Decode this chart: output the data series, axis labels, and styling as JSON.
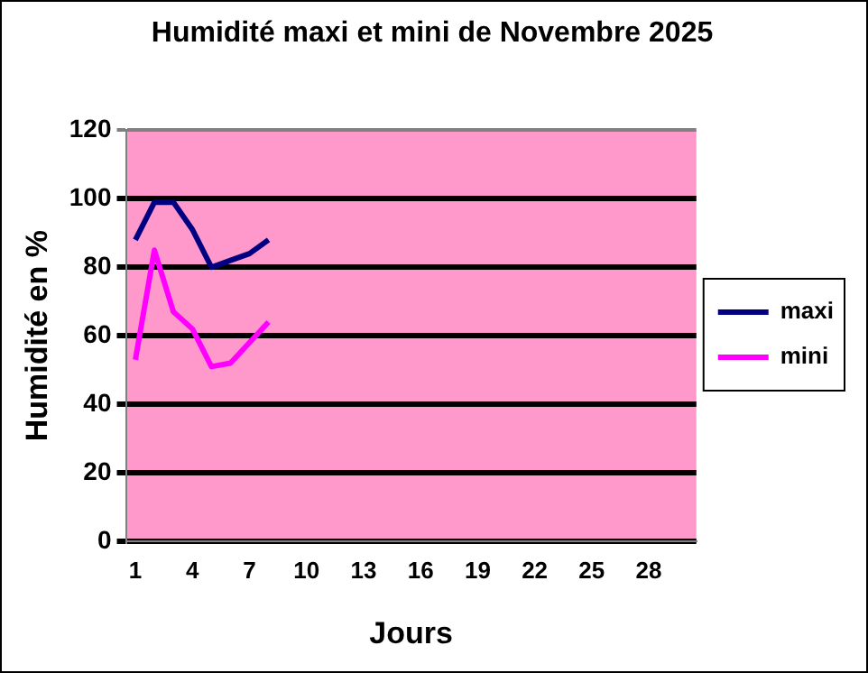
{
  "chart_data": {
    "type": "line",
    "title": "Humidité maxi et mini de Novembre 2025",
    "xlabel": "Jours",
    "ylabel": "Humidité en %",
    "categories": [
      "1",
      null,
      null,
      "4",
      null,
      null,
      "7",
      null,
      null,
      "10",
      null,
      null,
      "13",
      null,
      null,
      "16",
      null,
      null,
      "19",
      null,
      null,
      "22",
      null,
      null,
      "25",
      null,
      null,
      "28",
      null,
      null
    ],
    "series": [
      {
        "name": "maxi",
        "color": "#000080",
        "values": [
          88,
          99,
          99,
          91,
          80,
          82,
          84,
          88,
          null,
          null,
          null,
          null,
          null,
          null,
          null,
          null,
          null,
          null,
          null,
          null,
          null,
          null,
          null,
          null,
          null,
          null,
          null,
          null,
          null,
          null
        ]
      },
      {
        "name": "mini",
        "color": "#ff00ff",
        "values": [
          53,
          85,
          67,
          62,
          51,
          52,
          58,
          64,
          null,
          null,
          null,
          null,
          null,
          null,
          null,
          null,
          null,
          null,
          null,
          null,
          null,
          null,
          null,
          null,
          null,
          null,
          null,
          null,
          null,
          null
        ]
      }
    ],
    "ylim": [
      0,
      120
    ],
    "yticks": [
      0,
      20,
      40,
      60,
      80,
      100,
      120
    ],
    "grid": "y",
    "legend": "right",
    "marker": "none",
    "line_style": "solid"
  }
}
